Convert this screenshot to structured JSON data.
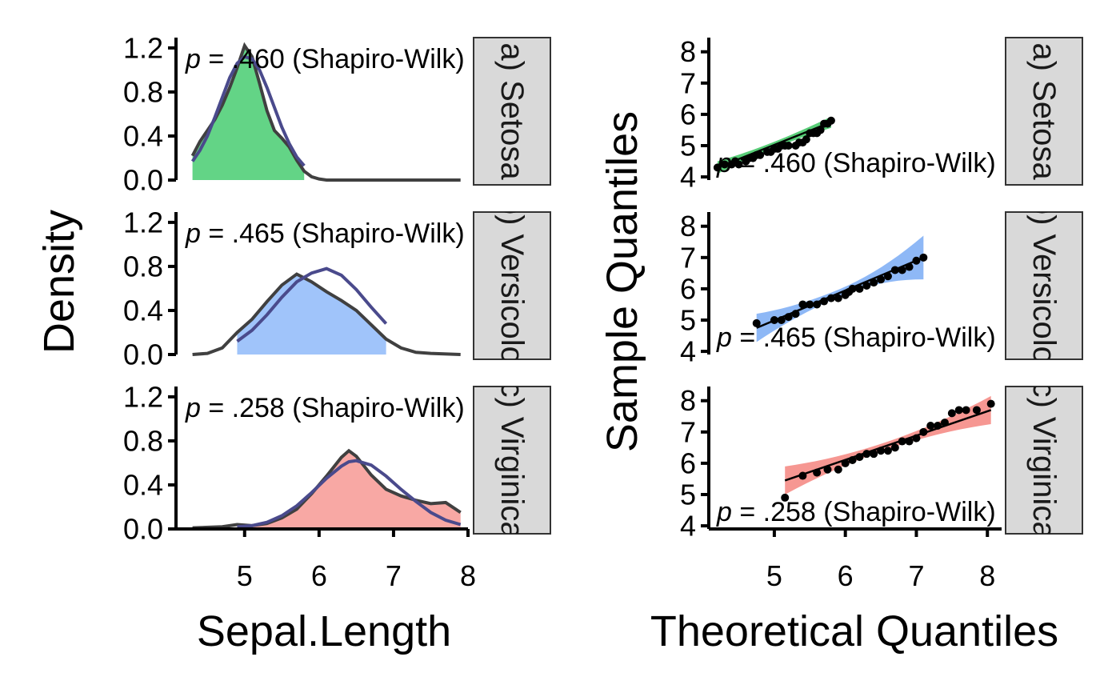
{
  "chart_data": [
    {
      "type": "area",
      "xlabel": "Sepal.Length",
      "ylabel": "Density",
      "xlim": [
        4.1,
        8.0
      ],
      "ylim": [
        0,
        1.25
      ],
      "x_ticks": [
        "5",
        "6",
        "7",
        "8"
      ],
      "y_ticks": [
        "0.0",
        "0.4",
        "0.8",
        "1.2"
      ],
      "lines": {
        "kernel_color": "#404040",
        "normal_color": "#4a4a8c"
      },
      "panels": [
        {
          "strip": "a) Setosa",
          "fill": "#63d486",
          "pvalue_label": {
            "italic": "p",
            "rest": " = .460 (Shapiro-Wilk)"
          },
          "x": [
            4.3,
            4.4,
            4.5,
            4.6,
            4.7,
            4.8,
            4.9,
            5.0,
            5.1,
            5.2,
            5.3,
            5.4,
            5.5,
            5.6,
            5.7,
            5.8,
            5.9,
            6.0,
            6.1,
            6.2,
            6.4,
            6.6,
            6.8,
            7.0,
            7.2,
            7.4,
            7.6,
            7.9
          ],
          "density": [
            0.22,
            0.35,
            0.45,
            0.55,
            0.68,
            0.84,
            1.02,
            1.22,
            1.12,
            0.88,
            0.63,
            0.45,
            0.38,
            0.3,
            0.18,
            0.08,
            0.03,
            0.01,
            0.0,
            0.0,
            0.0,
            0.0,
            0.0,
            0.0,
            0.0,
            0.0,
            0.0,
            0.0
          ],
          "normal": [
            0.17,
            0.27,
            0.4,
            0.57,
            0.75,
            0.93,
            1.06,
            1.12,
            1.1,
            1.0,
            0.84,
            0.66,
            0.48,
            0.33,
            0.21,
            0.13
          ]
        },
        {
          "strip": "b) Versicolor",
          "fill": "#a0c4fa",
          "pvalue_label": {
            "italic": "p",
            "rest": " = .465 (Shapiro-Wilk)"
          },
          "x": [
            4.3,
            4.5,
            4.7,
            4.9,
            5.1,
            5.3,
            5.5,
            5.7,
            5.9,
            6.1,
            6.3,
            6.5,
            6.7,
            6.9,
            7.1,
            7.3,
            7.5,
            7.9
          ],
          "density": [
            0.0,
            0.01,
            0.06,
            0.2,
            0.32,
            0.48,
            0.63,
            0.73,
            0.66,
            0.57,
            0.49,
            0.4,
            0.27,
            0.14,
            0.06,
            0.02,
            0.01,
            0.0
          ],
          "normal": [
            null,
            null,
            null,
            0.12,
            0.22,
            0.36,
            0.52,
            0.66,
            0.74,
            0.78,
            0.72,
            0.59,
            0.43,
            0.28,
            null,
            null,
            null,
            null
          ]
        },
        {
          "strip": "c) Virginica",
          "fill": "#f8a8a4",
          "pvalue_label": {
            "italic": "p",
            "rest": " = .258 (Shapiro-Wilk)"
          },
          "x": [
            4.3,
            4.7,
            4.9,
            5.1,
            5.3,
            5.5,
            5.7,
            5.9,
            6.1,
            6.3,
            6.4,
            6.5,
            6.7,
            6.9,
            7.1,
            7.3,
            7.5,
            7.7,
            7.9
          ],
          "density": [
            0.01,
            0.02,
            0.04,
            0.03,
            0.05,
            0.1,
            0.18,
            0.32,
            0.48,
            0.65,
            0.71,
            0.66,
            0.49,
            0.36,
            0.3,
            0.26,
            0.23,
            0.24,
            0.15
          ],
          "normal": [
            null,
            null,
            0.02,
            0.03,
            0.06,
            0.12,
            0.21,
            0.33,
            0.46,
            0.57,
            0.61,
            0.62,
            0.58,
            0.48,
            0.36,
            0.25,
            0.15,
            0.08,
            0.04
          ]
        }
      ]
    },
    {
      "type": "scatter",
      "xlabel": "Theoretical Quantiles",
      "ylabel": "Sample Quantiles",
      "xlim": [
        4.1,
        8.2
      ],
      "ylim": [
        3.9,
        8.3
      ],
      "x_ticks": [
        "5",
        "6",
        "7",
        "8"
      ],
      "y_ticks": [
        "4",
        "5",
        "6",
        "7",
        "8"
      ],
      "panels": [
        {
          "strip": "a) Setosa",
          "band_color": "#3cc460",
          "pvalue_label": {
            "italic": "p",
            "rest": " = .460 (Shapiro-Wilk)"
          },
          "line": [
            [
              4.2,
              4.3
            ],
            [
              5.8,
              5.75
            ]
          ],
          "band_halfwidth": [
            0.2,
            0.1,
            0.18
          ],
          "points": [
            [
              4.2,
              4.3
            ],
            [
              4.3,
              4.4
            ],
            [
              4.4,
              4.4
            ],
            [
              4.45,
              4.5
            ],
            [
              4.5,
              4.4
            ],
            [
              4.6,
              4.5
            ],
            [
              4.65,
              4.6
            ],
            [
              4.7,
              4.6
            ],
            [
              4.75,
              4.7
            ],
            [
              4.8,
              4.7
            ],
            [
              4.9,
              4.8
            ],
            [
              4.95,
              4.8
            ],
            [
              5.0,
              4.9
            ],
            [
              5.05,
              4.9
            ],
            [
              5.1,
              5.0
            ],
            [
              5.15,
              5.0
            ],
            [
              5.2,
              5.0
            ],
            [
              5.3,
              5.0
            ],
            [
              5.35,
              5.1
            ],
            [
              5.4,
              5.1
            ],
            [
              5.45,
              5.2
            ],
            [
              5.5,
              5.4
            ],
            [
              5.55,
              5.4
            ],
            [
              5.6,
              5.4
            ],
            [
              5.65,
              5.5
            ],
            [
              5.7,
              5.7
            ],
            [
              5.75,
              5.7
            ],
            [
              5.8,
              5.8
            ]
          ]
        },
        {
          "strip": "b) Versicolor",
          "band_color": "#7aabf5",
          "pvalue_label": {
            "italic": "p",
            "rest": " = .465 (Shapiro-Wilk)"
          },
          "line": [
            [
              4.75,
              4.75
            ],
            [
              7.1,
              7.0
            ]
          ],
          "band_halfwidth": [
            0.45,
            0.12,
            0.7
          ],
          "points": [
            [
              4.75,
              4.9
            ],
            [
              5.0,
              5.0
            ],
            [
              5.1,
              5.0
            ],
            [
              5.2,
              5.1
            ],
            [
              5.3,
              5.2
            ],
            [
              5.4,
              5.5
            ],
            [
              5.5,
              5.5
            ],
            [
              5.6,
              5.5
            ],
            [
              5.7,
              5.6
            ],
            [
              5.8,
              5.7
            ],
            [
              5.9,
              5.7
            ],
            [
              6.0,
              5.8
            ],
            [
              6.05,
              5.9
            ],
            [
              6.1,
              6.0
            ],
            [
              6.2,
              6.0
            ],
            [
              6.3,
              6.1
            ],
            [
              6.4,
              6.2
            ],
            [
              6.5,
              6.3
            ],
            [
              6.6,
              6.4
            ],
            [
              6.7,
              6.6
            ],
            [
              6.8,
              6.6
            ],
            [
              6.9,
              6.7
            ],
            [
              7.0,
              6.9
            ],
            [
              7.1,
              7.0
            ]
          ]
        },
        {
          "strip": "c) Virginica",
          "band_color": "#f4857f",
          "pvalue_label": {
            "italic": "p",
            "rest": " = .258 (Shapiro-Wilk)"
          },
          "line": [
            [
              5.15,
              5.45
            ],
            [
              8.05,
              7.7
            ]
          ],
          "band_halfwidth": [
            0.45,
            0.12,
            0.45
          ],
          "points": [
            [
              5.15,
              4.9
            ],
            [
              5.4,
              5.6
            ],
            [
              5.6,
              5.7
            ],
            [
              5.75,
              5.8
            ],
            [
              5.9,
              5.8
            ],
            [
              6.0,
              6.0
            ],
            [
              6.1,
              6.1
            ],
            [
              6.2,
              6.2
            ],
            [
              6.3,
              6.3
            ],
            [
              6.4,
              6.3
            ],
            [
              6.5,
              6.4
            ],
            [
              6.6,
              6.4
            ],
            [
              6.7,
              6.5
            ],
            [
              6.8,
              6.7
            ],
            [
              6.9,
              6.7
            ],
            [
              7.0,
              6.8
            ],
            [
              7.1,
              7.0
            ],
            [
              7.2,
              7.2
            ],
            [
              7.3,
              7.2
            ],
            [
              7.4,
              7.3
            ],
            [
              7.5,
              7.6
            ],
            [
              7.6,
              7.7
            ],
            [
              7.7,
              7.7
            ],
            [
              7.85,
              7.7
            ],
            [
              8.05,
              7.9
            ]
          ]
        }
      ]
    }
  ]
}
